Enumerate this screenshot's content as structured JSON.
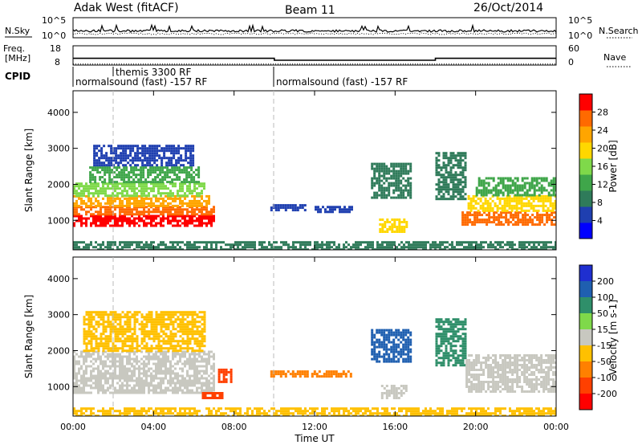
{
  "header": {
    "station": "Adak West (fitACF)",
    "beam": "Beam 11",
    "date": "26/Oct/2014"
  },
  "nsky_panel": {
    "left_label": "N.Sky",
    "right_label": "N.Search",
    "tick_top": "10^5",
    "tick_bottom": "10^0"
  },
  "freq_panel": {
    "left_label_line1": "Freq.",
    "left_label_line2": "[MHz]",
    "left_ticks": [
      "18",
      "8"
    ],
    "right_ticks": [
      "60",
      "0"
    ],
    "right_label": "Nave",
    "series": [
      {
        "name": "Freq.",
        "x": [
          0,
          10,
          10,
          18,
          18,
          24
        ],
        "y": [
          11.5,
          11.5,
          10.5,
          10.5,
          11.5,
          11.5
        ]
      },
      {
        "name": "Nave",
        "x": [
          0,
          24
        ],
        "y": [
          3,
          3
        ]
      }
    ]
  },
  "cpid": {
    "label": "CPID",
    "segments": [
      {
        "start": 0,
        "end": 10,
        "text": "normalsound (fast) -157 RF"
      },
      {
        "start": 2,
        "end": 2,
        "text": "themis 3300 RF"
      },
      {
        "start": 10,
        "end": 24,
        "text": "normalsound (fast) -157 RF"
      }
    ]
  },
  "chart_data": [
    {
      "type": "heatmap",
      "title": "Power",
      "ylabel": "Slant Range [km]",
      "xlabel": "",
      "xlim": [
        0,
        24
      ],
      "ylim": [
        180,
        4600
      ],
      "yticks": [
        "1000",
        "2000",
        "3000",
        "4000"
      ],
      "colorbar": {
        "label": "Power [dB]",
        "range": [
          0,
          32
        ],
        "ticks": [
          "4",
          "8",
          "12",
          "16",
          "20",
          "24",
          "28"
        ],
        "colors": [
          "#0000ff",
          "#1f3fb0",
          "#2f7b5a",
          "#3fa64a",
          "#7fd94a",
          "#ffd700",
          "#ffa500",
          "#ff6a00",
          "#ff0000"
        ]
      },
      "regions": [
        {
          "t": [
            0.0,
            7.0
          ],
          "r": [
            850,
            1150
          ],
          "value": 29
        },
        {
          "t": [
            0.0,
            7.0
          ],
          "r": [
            1150,
            1400
          ],
          "value": 26
        },
        {
          "t": [
            0.0,
            6.8
          ],
          "r": [
            1400,
            1700
          ],
          "value": 22
        },
        {
          "t": [
            0.0,
            6.5
          ],
          "r": [
            1700,
            2050
          ],
          "value": 17
        },
        {
          "t": [
            0.8,
            6.2
          ],
          "r": [
            2050,
            2500
          ],
          "value": 11
        },
        {
          "t": [
            1.0,
            6.0
          ],
          "r": [
            2500,
            3100
          ],
          "value": 7
        },
        {
          "t": [
            9.8,
            11.5
          ],
          "r": [
            1300,
            1450
          ],
          "value": 6
        },
        {
          "t": [
            12.0,
            13.8
          ],
          "r": [
            1250,
            1400
          ],
          "value": 6
        },
        {
          "t": [
            14.8,
            16.8
          ],
          "r": [
            1600,
            2600
          ],
          "value": 9
        },
        {
          "t": [
            15.2,
            16.6
          ],
          "r": [
            650,
            1050
          ],
          "value": 18
        },
        {
          "t": [
            18.0,
            19.5
          ],
          "r": [
            1600,
            2900
          ],
          "value": 10
        },
        {
          "t": [
            19.3,
            24.0
          ],
          "r": [
            850,
            1250
          ],
          "value": 28
        },
        {
          "t": [
            19.6,
            24.0
          ],
          "r": [
            1250,
            1700
          ],
          "value": 21
        },
        {
          "t": [
            20.0,
            24.0
          ],
          "r": [
            1700,
            2200
          ],
          "value": 12
        },
        {
          "t": [
            0.0,
            24.0
          ],
          "r": [
            180,
            420
          ],
          "value": 8
        }
      ]
    },
    {
      "type": "heatmap",
      "title": "Velocity",
      "ylabel": "Slant Range [km]",
      "xlabel": "Time UT",
      "xlim": [
        0,
        24
      ],
      "ylim": [
        180,
        4600
      ],
      "xticks": [
        "00:00",
        "04:00",
        "08:00",
        "12:00",
        "16:00",
        "20:00",
        "00:00"
      ],
      "yticks": [
        "1000",
        "2000",
        "3000",
        "4000"
      ],
      "colorbar": {
        "label": "Velocity [m s-1]",
        "ticks": [
          "200",
          "100",
          "50",
          "15",
          "-15",
          "-50",
          "-100",
          "-200"
        ],
        "colors": [
          "#1f2fd0",
          "#1f5fb0",
          "#2f8f6a",
          "#7fd94a",
          "#c8c8c0",
          "#ffc000",
          "#ff8000",
          "#ff4000",
          "#ff0000"
        ]
      },
      "regions": [
        {
          "t": [
            0.0,
            7.0
          ],
          "r": [
            850,
            2000
          ],
          "value": 0
        },
        {
          "t": [
            0.5,
            6.5
          ],
          "r": [
            2000,
            3100
          ],
          "value": -40
        },
        {
          "t": [
            7.2,
            7.8
          ],
          "r": [
            1150,
            1500
          ],
          "value": -160
        },
        {
          "t": [
            6.4,
            7.4
          ],
          "r": [
            700,
            850
          ],
          "value": -120
        },
        {
          "t": [
            9.8,
            13.8
          ],
          "r": [
            1250,
            1450
          ],
          "value": -60
        },
        {
          "t": [
            14.8,
            16.8
          ],
          "r": [
            1700,
            2600
          ],
          "value": 150
        },
        {
          "t": [
            15.3,
            16.6
          ],
          "r": [
            700,
            1050
          ],
          "value": 0
        },
        {
          "t": [
            18.0,
            19.5
          ],
          "r": [
            1600,
            2900
          ],
          "value": 60
        },
        {
          "t": [
            19.5,
            24.0
          ],
          "r": [
            850,
            1900
          ],
          "value": 0
        },
        {
          "t": [
            0.0,
            24.0
          ],
          "r": [
            180,
            420
          ],
          "value": -40
        }
      ]
    }
  ]
}
